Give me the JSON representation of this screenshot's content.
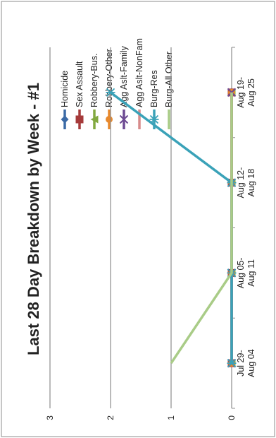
{
  "chart_data": {
    "type": "line",
    "title": "Last 28 Day Breakdown by Week - #1",
    "categories": [
      "Jul 29-Aug 04",
      "Aug 05-Aug 11",
      "Aug 12-Aug 18",
      "Aug 19-Aug 25"
    ],
    "ylim": [
      0,
      3
    ],
    "yticks": [
      0,
      1,
      2,
      3
    ],
    "grid": true,
    "legend_position": "top",
    "series": [
      {
        "name": "Homicide",
        "values": [
          0,
          0,
          0,
          0
        ],
        "color": "#3b6aa6",
        "marker": "diamond"
      },
      {
        "name": "Sex Assault",
        "values": [
          0,
          0,
          0,
          0
        ],
        "color": "#a63a3a",
        "marker": "square"
      },
      {
        "name": "Robbery-Bus.",
        "values": [
          0,
          0,
          0,
          0
        ],
        "color": "#82a93f",
        "marker": "triangle"
      },
      {
        "name": "Robbery-Other",
        "values": [
          0,
          0,
          0,
          0
        ],
        "color": "#e8892d",
        "marker": "circle"
      },
      {
        "name": "Agg Aslt-Family",
        "values": [
          0,
          0,
          0,
          0
        ],
        "color": "#6e4b93",
        "marker": "x"
      },
      {
        "name": "Agg Aslt-NonFam",
        "values": [
          0,
          0,
          0,
          0
        ],
        "color": "#d78b8b",
        "marker": "none"
      },
      {
        "name": "Burg-Res",
        "values": [
          0,
          0,
          0,
          2
        ],
        "color": "#3aa2b8",
        "marker": "star"
      },
      {
        "name": "Burg-All Other",
        "values": [
          1,
          0,
          0,
          0
        ],
        "color": "#a9cc87",
        "marker": "none"
      }
    ]
  }
}
